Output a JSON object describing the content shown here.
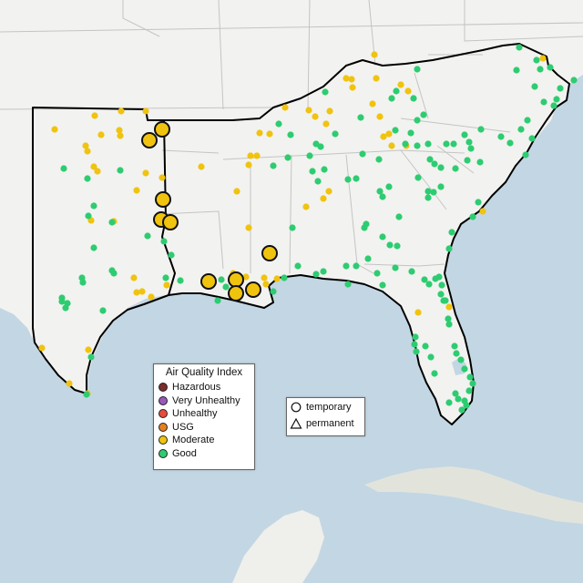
{
  "map": {
    "region": "Southeastern United States",
    "colors": {
      "water": "#c3d6e3",
      "land": "#f2f2f0",
      "cuba": "#e2e4dc",
      "boundary": "#c4c4c4",
      "outline": "#000000",
      "good": "#2ecc71",
      "moderate": "#f0c30f",
      "usg": "#e67e22",
      "unhealthy": "#e74c3c",
      "very_unhealthy": "#9b59b6",
      "hazardous": "#7b2c2c"
    }
  },
  "aqi_legend": {
    "title": "Air Quality Index",
    "items": [
      {
        "label": "Hazardous",
        "color": "#7b2c2c"
      },
      {
        "label": "Very Unhealthy",
        "color": "#9b59b6"
      },
      {
        "label": "Unhealthy",
        "color": "#e74c3c"
      },
      {
        "label": "USG",
        "color": "#e67e22"
      },
      {
        "label": "Moderate",
        "color": "#f0c30f"
      },
      {
        "label": "Good",
        "color": "#2ecc71"
      }
    ]
  },
  "type_legend": {
    "items": [
      {
        "label": "temporary",
        "shape": "circle"
      },
      {
        "label": "permanent",
        "shape": "triangle"
      }
    ]
  }
}
